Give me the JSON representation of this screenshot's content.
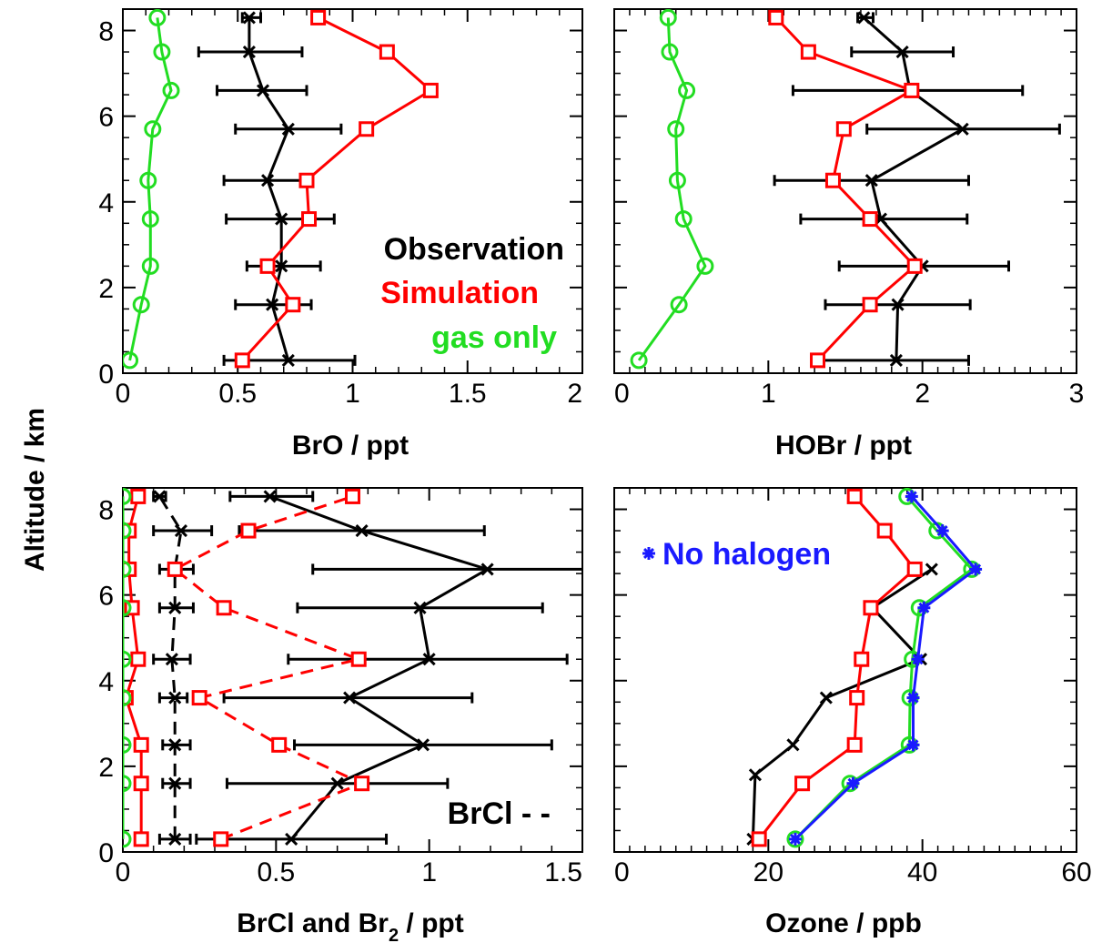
{
  "figure": {
    "ylabel": "Altitude / km",
    "y_ticks": [
      "0",
      "2",
      "4",
      "6",
      "8"
    ]
  },
  "colors": {
    "observation": "#000000",
    "simulation": "#ff0000",
    "gas_only": "#22dd22",
    "no_halogen": "#1a1aff"
  },
  "chart_data": [
    {
      "type": "line",
      "panel": "top-left",
      "xlabel": "BrO / ppt",
      "xlim": [
        0,
        2
      ],
      "ylim": [
        0,
        8.5
      ],
      "x_ticks": [
        "0",
        "0.5",
        "1",
        "1.5",
        "2"
      ],
      "legend": {
        "observation": "Observation",
        "simulation": "Simulation",
        "gas_only": "gas only"
      },
      "series": [
        {
          "name": "Observation",
          "color_key": "observation",
          "marker": "x",
          "dashed": false,
          "points": [
            {
              "x": 0.72,
              "y": 0.3,
              "lo": 0.44,
              "hi": 1.01
            },
            {
              "x": 0.65,
              "y": 1.6,
              "lo": 0.49,
              "hi": 0.82
            },
            {
              "x": 0.69,
              "y": 2.5,
              "lo": 0.54,
              "hi": 0.86
            },
            {
              "x": 0.69,
              "y": 3.6,
              "lo": 0.45,
              "hi": 0.92
            },
            {
              "x": 0.63,
              "y": 4.5,
              "lo": 0.44,
              "hi": 0.82
            },
            {
              "x": 0.72,
              "y": 5.7,
              "lo": 0.49,
              "hi": 0.95
            },
            {
              "x": 0.61,
              "y": 6.6,
              "lo": 0.41,
              "hi": 0.8
            },
            {
              "x": 0.55,
              "y": 7.5,
              "lo": 0.33,
              "hi": 0.78
            },
            {
              "x": 0.55,
              "y": 8.3,
              "lo": 0.52,
              "hi": 0.6
            }
          ]
        },
        {
          "name": "Simulation",
          "color_key": "simulation",
          "marker": "square",
          "dashed": false,
          "points": [
            {
              "x": 0.52,
              "y": 0.3
            },
            {
              "x": 0.74,
              "y": 1.6
            },
            {
              "x": 0.63,
              "y": 2.5
            },
            {
              "x": 0.81,
              "y": 3.6
            },
            {
              "x": 0.8,
              "y": 4.5
            },
            {
              "x": 1.06,
              "y": 5.7
            },
            {
              "x": 1.34,
              "y": 6.6
            },
            {
              "x": 1.15,
              "y": 7.5
            },
            {
              "x": 0.85,
              "y": 8.3
            }
          ]
        },
        {
          "name": "gas only",
          "color_key": "gas_only",
          "marker": "circle",
          "dashed": false,
          "points": [
            {
              "x": 0.03,
              "y": 0.3
            },
            {
              "x": 0.08,
              "y": 1.6
            },
            {
              "x": 0.12,
              "y": 2.5
            },
            {
              "x": 0.12,
              "y": 3.6
            },
            {
              "x": 0.11,
              "y": 4.5
            },
            {
              "x": 0.13,
              "y": 5.7
            },
            {
              "x": 0.21,
              "y": 6.6
            },
            {
              "x": 0.17,
              "y": 7.5
            },
            {
              "x": 0.15,
              "y": 8.3
            }
          ]
        }
      ]
    },
    {
      "type": "line",
      "panel": "top-right",
      "xlabel": "HOBr / ppt",
      "xlim": [
        0,
        3
      ],
      "ylim": [
        0,
        8.5
      ],
      "x_ticks": [
        "0",
        "1",
        "2",
        "3"
      ],
      "series": [
        {
          "name": "Observation",
          "color_key": "observation",
          "marker": "x",
          "dashed": false,
          "points": [
            {
              "x": 1.83,
              "y": 0.3,
              "lo": 1.36,
              "hi": 2.3
            },
            {
              "x": 1.84,
              "y": 1.6,
              "lo": 1.37,
              "hi": 2.31
            },
            {
              "x": 2.0,
              "y": 2.5,
              "lo": 1.46,
              "hi": 2.56
            },
            {
              "x": 1.73,
              "y": 3.6,
              "lo": 1.21,
              "hi": 2.29
            },
            {
              "x": 1.67,
              "y": 4.5,
              "lo": 1.04,
              "hi": 2.3
            },
            {
              "x": 2.26,
              "y": 5.7,
              "lo": 1.64,
              "hi": 2.89
            },
            {
              "x": 1.92,
              "y": 6.6,
              "lo": 1.16,
              "hi": 2.65
            },
            {
              "x": 1.87,
              "y": 7.5,
              "lo": 1.54,
              "hi": 2.2
            },
            {
              "x": 1.62,
              "y": 8.3,
              "lo": 1.58,
              "hi": 1.68
            }
          ]
        },
        {
          "name": "Simulation",
          "color_key": "simulation",
          "marker": "square",
          "dashed": false,
          "points": [
            {
              "x": 1.32,
              "y": 0.3
            },
            {
              "x": 1.66,
              "y": 1.6
            },
            {
              "x": 1.95,
              "y": 2.5
            },
            {
              "x": 1.66,
              "y": 3.6
            },
            {
              "x": 1.42,
              "y": 4.5
            },
            {
              "x": 1.49,
              "y": 5.7
            },
            {
              "x": 1.93,
              "y": 6.6
            },
            {
              "x": 1.26,
              "y": 7.5
            },
            {
              "x": 1.05,
              "y": 8.3
            }
          ]
        },
        {
          "name": "gas only",
          "color_key": "gas_only",
          "marker": "circle",
          "dashed": false,
          "points": [
            {
              "x": 0.16,
              "y": 0.3
            },
            {
              "x": 0.42,
              "y": 1.6
            },
            {
              "x": 0.59,
              "y": 2.5
            },
            {
              "x": 0.45,
              "y": 3.6
            },
            {
              "x": 0.41,
              "y": 4.5
            },
            {
              "x": 0.4,
              "y": 5.7
            },
            {
              "x": 0.47,
              "y": 6.6
            },
            {
              "x": 0.36,
              "y": 7.5
            },
            {
              "x": 0.35,
              "y": 8.3
            }
          ]
        }
      ]
    },
    {
      "type": "line",
      "panel": "bottom-left",
      "xlabel": "BrCl and Br",
      "xlabel_subscript": "2",
      "xlabel_suffix": " / ppt",
      "xlim": [
        0,
        1.5
      ],
      "ylim": [
        0,
        8.5
      ],
      "x_ticks": [
        "0",
        "0.5",
        "1",
        "1.5"
      ],
      "legend": {
        "brcl": "BrCl - -"
      },
      "series": [
        {
          "name": "Br2 observation",
          "color_key": "observation",
          "marker": "x",
          "dashed": false,
          "points": [
            {
              "x": 0.55,
              "y": 0.3,
              "lo": 0.24,
              "hi": 0.86
            },
            {
              "x": 0.7,
              "y": 1.6,
              "lo": 0.34,
              "hi": 1.06
            },
            {
              "x": 0.98,
              "y": 2.5,
              "lo": 0.56,
              "hi": 1.4
            },
            {
              "x": 0.74,
              "y": 3.6,
              "lo": 0.33,
              "hi": 1.14
            },
            {
              "x": 1.0,
              "y": 4.5,
              "lo": 0.54,
              "hi": 1.45
            },
            {
              "x": 0.97,
              "y": 5.7,
              "lo": 0.57,
              "hi": 1.37
            },
            {
              "x": 1.19,
              "y": 6.6,
              "lo": 0.62,
              "hi": 1.52
            },
            {
              "x": 0.78,
              "y": 7.5,
              "lo": 0.38,
              "hi": 1.18
            },
            {
              "x": 0.48,
              "y": 8.3,
              "lo": 0.35,
              "hi": 0.62
            }
          ]
        },
        {
          "name": "BrCl observation",
          "color_key": "observation",
          "marker": "x",
          "dashed": true,
          "points": [
            {
              "x": 0.17,
              "y": 0.3,
              "lo": 0.12,
              "hi": 0.22
            },
            {
              "x": 0.17,
              "y": 1.6,
              "lo": 0.13,
              "hi": 0.22
            },
            {
              "x": 0.17,
              "y": 2.5,
              "lo": 0.13,
              "hi": 0.22
            },
            {
              "x": 0.17,
              "y": 3.6,
              "lo": 0.12,
              "hi": 0.21
            },
            {
              "x": 0.16,
              "y": 4.5,
              "lo": 0.1,
              "hi": 0.22
            },
            {
              "x": 0.17,
              "y": 5.7,
              "lo": 0.12,
              "hi": 0.23
            },
            {
              "x": 0.17,
              "y": 6.6,
              "lo": 0.12,
              "hi": 0.23
            },
            {
              "x": 0.19,
              "y": 7.5,
              "lo": 0.1,
              "hi": 0.29
            },
            {
              "x": 0.12,
              "y": 8.3,
              "lo": 0.1,
              "hi": 0.14
            }
          ]
        },
        {
          "name": "Br2 simulation",
          "color_key": "simulation",
          "marker": "square",
          "dashed": false,
          "points": [
            {
              "x": 0.06,
              "y": 0.3
            },
            {
              "x": 0.06,
              "y": 1.6
            },
            {
              "x": 0.06,
              "y": 2.5
            },
            {
              "x": 0.01,
              "y": 3.6
            },
            {
              "x": 0.05,
              "y": 4.5
            },
            {
              "x": 0.03,
              "y": 5.7
            },
            {
              "x": 0.02,
              "y": 6.6
            },
            {
              "x": 0.02,
              "y": 7.5
            },
            {
              "x": 0.05,
              "y": 8.3
            }
          ]
        },
        {
          "name": "BrCl simulation",
          "color_key": "simulation",
          "marker": "square",
          "dashed": true,
          "points": [
            {
              "x": 0.32,
              "y": 0.3
            },
            {
              "x": 0.78,
              "y": 1.6
            },
            {
              "x": 0.51,
              "y": 2.5
            },
            {
              "x": 0.25,
              "y": 3.6
            },
            {
              "x": 0.77,
              "y": 4.5
            },
            {
              "x": 0.33,
              "y": 5.7
            },
            {
              "x": 0.17,
              "y": 6.6
            },
            {
              "x": 0.41,
              "y": 7.5
            },
            {
              "x": 0.75,
              "y": 8.3
            }
          ]
        },
        {
          "name": "gas only",
          "color_key": "gas_only",
          "marker": "circle",
          "dashed": false,
          "points": [
            {
              "x": 0.0,
              "y": 0.3
            },
            {
              "x": 0.0,
              "y": 1.6
            },
            {
              "x": 0.0,
              "y": 2.5
            },
            {
              "x": 0.0,
              "y": 3.6
            },
            {
              "x": 0.0,
              "y": 4.5
            },
            {
              "x": 0.0,
              "y": 5.7
            },
            {
              "x": 0.0,
              "y": 6.6
            },
            {
              "x": 0.0,
              "y": 7.5
            },
            {
              "x": 0.0,
              "y": 8.3
            }
          ]
        }
      ]
    },
    {
      "type": "line",
      "panel": "bottom-right",
      "xlabel": "Ozone / ppb",
      "xlim": [
        0,
        60
      ],
      "ylim": [
        0,
        8.5
      ],
      "x_ticks": [
        "0",
        "20",
        "40",
        "60"
      ],
      "legend": {
        "no_halogen": "No halogen"
      },
      "series": [
        {
          "name": "Observation",
          "color_key": "observation",
          "marker": "x",
          "dashed": false,
          "points": [
            {
              "x": 18.0,
              "y": 0.3
            },
            {
              "x": 18.3,
              "y": 1.8
            },
            {
              "x": 23.2,
              "y": 2.5
            },
            {
              "x": 27.5,
              "y": 3.6
            },
            {
              "x": 39.8,
              "y": 4.5
            },
            {
              "x": 33.5,
              "y": 5.7
            },
            {
              "x": 41.2,
              "y": 6.6
            }
          ]
        },
        {
          "name": "Simulation",
          "color_key": "simulation",
          "marker": "square",
          "dashed": false,
          "points": [
            {
              "x": 18.8,
              "y": 0.3
            },
            {
              "x": 24.4,
              "y": 1.6
            },
            {
              "x": 31.2,
              "y": 2.5
            },
            {
              "x": 31.5,
              "y": 3.6
            },
            {
              "x": 32.1,
              "y": 4.5
            },
            {
              "x": 33.3,
              "y": 5.7
            },
            {
              "x": 39.0,
              "y": 6.6
            },
            {
              "x": 35.1,
              "y": 7.5
            },
            {
              "x": 31.2,
              "y": 8.3
            }
          ]
        },
        {
          "name": "gas only",
          "color_key": "gas_only",
          "marker": "circle",
          "dashed": false,
          "points": [
            {
              "x": 23.5,
              "y": 0.3
            },
            {
              "x": 30.6,
              "y": 1.6
            },
            {
              "x": 38.3,
              "y": 2.5
            },
            {
              "x": 38.4,
              "y": 3.6
            },
            {
              "x": 38.7,
              "y": 4.5
            },
            {
              "x": 39.6,
              "y": 5.7
            },
            {
              "x": 46.4,
              "y": 6.6
            },
            {
              "x": 41.9,
              "y": 7.5
            },
            {
              "x": 38.0,
              "y": 8.3
            }
          ]
        },
        {
          "name": "No halogen",
          "color_key": "no_halogen",
          "marker": "asterisk",
          "dashed": false,
          "points": [
            {
              "x": 23.5,
              "y": 0.3
            },
            {
              "x": 31.0,
              "y": 1.6
            },
            {
              "x": 38.8,
              "y": 2.5
            },
            {
              "x": 38.8,
              "y": 3.6
            },
            {
              "x": 39.4,
              "y": 4.5
            },
            {
              "x": 40.2,
              "y": 5.7
            },
            {
              "x": 46.9,
              "y": 6.6
            },
            {
              "x": 42.6,
              "y": 7.5
            },
            {
              "x": 38.6,
              "y": 8.3
            }
          ]
        }
      ]
    }
  ]
}
